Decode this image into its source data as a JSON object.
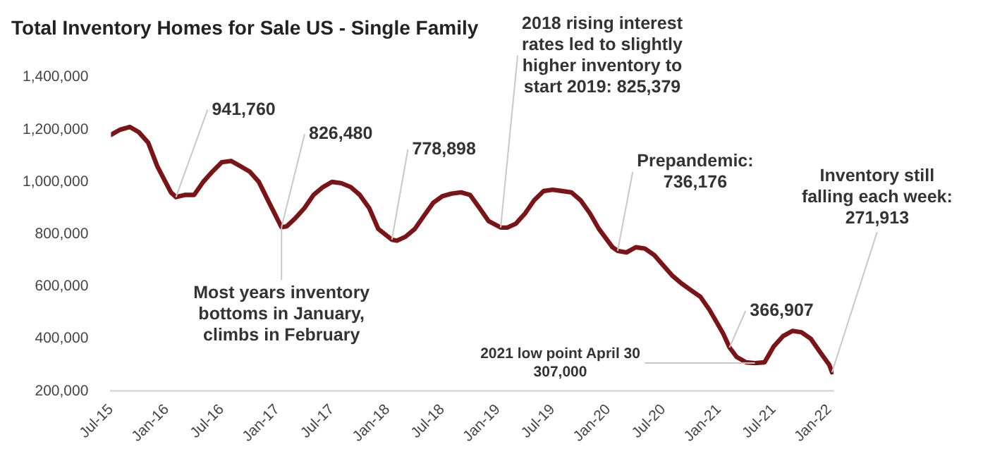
{
  "chart_data": {
    "type": "line",
    "title": "Total Inventory Homes for Sale US - Single Family",
    "x": [
      "2015-07-01",
      "2015-08-01",
      "2015-09-01",
      "2015-10-01",
      "2015-11-01",
      "2015-12-01",
      "2016-01-15",
      "2016-02-01",
      "2016-03-01",
      "2016-04-01",
      "2016-05-01",
      "2016-06-01",
      "2016-07-01",
      "2016-08-01",
      "2016-09-01",
      "2016-10-01",
      "2016-11-01",
      "2016-12-01",
      "2017-01-15",
      "2017-02-01",
      "2017-03-01",
      "2017-04-01",
      "2017-05-01",
      "2017-06-01",
      "2017-07-01",
      "2017-08-01",
      "2017-09-01",
      "2017-10-01",
      "2017-11-01",
      "2017-12-01",
      "2018-01-15",
      "2018-02-01",
      "2018-03-01",
      "2018-04-01",
      "2018-05-01",
      "2018-06-01",
      "2018-07-01",
      "2018-08-01",
      "2018-09-01",
      "2018-10-01",
      "2018-11-01",
      "2018-12-01",
      "2019-01-10",
      "2019-02-01",
      "2019-03-01",
      "2019-04-01",
      "2019-05-01",
      "2019-06-01",
      "2019-07-01",
      "2019-08-01",
      "2019-09-01",
      "2019-10-01",
      "2019-11-01",
      "2019-12-01",
      "2020-01-15",
      "2020-02-01",
      "2020-03-01",
      "2020-04-01",
      "2020-05-01",
      "2020-06-01",
      "2020-07-01",
      "2020-08-01",
      "2020-09-01",
      "2020-10-01",
      "2020-11-01",
      "2020-12-01",
      "2021-01-15",
      "2021-02-05",
      "2021-03-01",
      "2021-04-01",
      "2021-04-30",
      "2021-06-01",
      "2021-07-01",
      "2021-08-01",
      "2021-09-01",
      "2021-10-01",
      "2021-11-01",
      "2021-12-01",
      "2022-01-01",
      "2022-01-10"
    ],
    "series": [
      {
        "color": "#7b1416",
        "values": [
          1180000,
          1200000,
          1210000,
          1190000,
          1150000,
          1060000,
          960000,
          941760,
          950000,
          950000,
          1000000,
          1040000,
          1075000,
          1080000,
          1060000,
          1040000,
          1000000,
          930000,
          826480,
          830000,
          860000,
          900000,
          950000,
          980000,
          1000000,
          995000,
          980000,
          950000,
          900000,
          820000,
          778898,
          775000,
          790000,
          820000,
          870000,
          920000,
          945000,
          955000,
          960000,
          950000,
          900000,
          850000,
          825379,
          825000,
          840000,
          880000,
          930000,
          965000,
          970000,
          965000,
          960000,
          930000,
          880000,
          820000,
          750000,
          736176,
          730000,
          750000,
          745000,
          720000,
          680000,
          640000,
          610000,
          585000,
          560000,
          510000,
          420000,
          366907,
          330000,
          310000,
          307000,
          310000,
          370000,
          410000,
          430000,
          425000,
          400000,
          350000,
          300000,
          271913
        ]
      }
    ],
    "xlim": [
      "2015-07-01",
      "2022-01-15"
    ],
    "xticks": [
      {
        "value": "2015-07-01",
        "label": "Jul-15"
      },
      {
        "value": "2016-01-01",
        "label": "Jan-16"
      },
      {
        "value": "2016-07-01",
        "label": "Jul-16"
      },
      {
        "value": "2017-01-01",
        "label": "Jan-17"
      },
      {
        "value": "2017-07-01",
        "label": "Jul-17"
      },
      {
        "value": "2018-01-01",
        "label": "Jan-18"
      },
      {
        "value": "2018-07-01",
        "label": "Jul-18"
      },
      {
        "value": "2019-01-01",
        "label": "Jan-19"
      },
      {
        "value": "2019-07-01",
        "label": "Jul-19"
      },
      {
        "value": "2020-01-01",
        "label": "Jan-20"
      },
      {
        "value": "2020-07-01",
        "label": "Jul-20"
      },
      {
        "value": "2021-01-01",
        "label": "Jan-21"
      },
      {
        "value": "2021-07-01",
        "label": "Jul-21"
      },
      {
        "value": "2022-01-01",
        "label": "Jan-22"
      }
    ],
    "ylim": [
      200000,
      1400000
    ],
    "yticks": [
      {
        "value": 200000,
        "label": "200,000"
      },
      {
        "value": 400000,
        "label": "400,000"
      },
      {
        "value": 600000,
        "label": "600,000"
      },
      {
        "value": 800000,
        "label": "800,000"
      },
      {
        "value": 1000000,
        "label": "1,000,000"
      },
      {
        "value": 1200000,
        "label": "1,200,000"
      },
      {
        "value": 1400000,
        "label": "1,400,000"
      }
    ],
    "grid": false,
    "legend": false,
    "marker": "none",
    "line_style": "solid",
    "annotations": [
      {
        "text": "941,760",
        "x": "2016-02-01",
        "y": 941760
      },
      {
        "text": "826,480",
        "x": "2017-01-15",
        "y": 826480
      },
      {
        "text": "Most years inventory\nbottoms in January,\nclimbs in February",
        "x": "2017-01-15",
        "y": 826480
      },
      {
        "text": "778,898",
        "x": "2018-01-15",
        "y": 778898
      },
      {
        "text": "2018 rising interest\nrates led to slightly\nhigher inventory to\nstart 2019: 825,379",
        "x": "2019-01-10",
        "y": 825379
      },
      {
        "text": "Prepandemic:\n736,176",
        "x": "2020-02-01",
        "y": 736176
      },
      {
        "text": "366,907",
        "x": "2021-02-05",
        "y": 366907
      },
      {
        "text": "2021 low point April 30\n307,000",
        "x": "2021-04-30",
        "y": 307000
      },
      {
        "text": "Inventory still\nfalling each week:\n271,913",
        "x": "2022-01-10",
        "y": 271913
      }
    ]
  }
}
